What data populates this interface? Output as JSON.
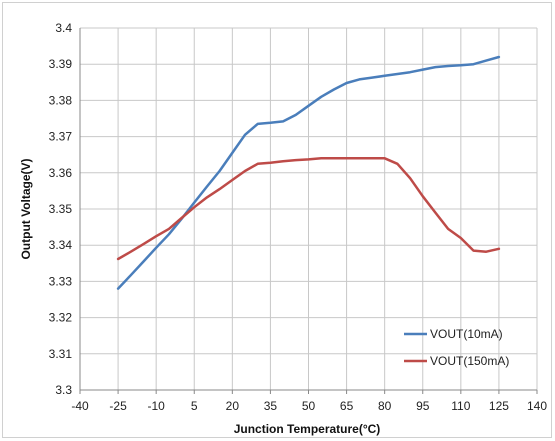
{
  "chart_data": {
    "type": "line",
    "title": "",
    "xlabel": "Junction Temperature(°C)",
    "ylabel": "Output Voltage(V)",
    "xlim": [
      -40,
      140
    ],
    "ylim": [
      3.3,
      3.4
    ],
    "x_ticks": [
      "-40",
      "-25",
      "-10",
      "5",
      "20",
      "35",
      "50",
      "65",
      "80",
      "95",
      "110",
      "125",
      "140"
    ],
    "y_ticks": [
      "3.3",
      "3.31",
      "3.32",
      "3.33",
      "3.34",
      "3.35",
      "3.36",
      "3.37",
      "3.38",
      "3.39",
      "3.4"
    ],
    "grid": true,
    "legend_position": "bottom-right",
    "series": [
      {
        "name": "VOUT(10mA)",
        "color": "#4a7ebb",
        "x": [
          -25,
          -20,
          -15,
          -10,
          -5,
          0,
          5,
          10,
          15,
          20,
          25,
          30,
          35,
          40,
          45,
          50,
          55,
          60,
          65,
          70,
          75,
          80,
          85,
          90,
          95,
          100,
          105,
          110,
          115,
          120,
          125
        ],
        "y": [
          3.328,
          3.3317,
          3.3355,
          3.3393,
          3.343,
          3.3473,
          3.3518,
          3.3562,
          3.3605,
          3.3655,
          3.3705,
          3.3735,
          3.3738,
          3.3742,
          3.376,
          3.3785,
          3.381,
          3.383,
          3.3848,
          3.3858,
          3.3863,
          3.3868,
          3.3873,
          3.3878,
          3.3885,
          3.3892,
          3.3895,
          3.3897,
          3.39,
          3.391,
          3.392
        ]
      },
      {
        "name": "VOUT(150mA)",
        "color": "#be4b48",
        "x": [
          -25,
          -20,
          -15,
          -10,
          -5,
          0,
          5,
          10,
          15,
          20,
          25,
          30,
          35,
          40,
          45,
          50,
          55,
          60,
          65,
          70,
          75,
          80,
          85,
          90,
          95,
          100,
          105,
          110,
          115,
          120,
          125
        ],
        "y": [
          3.3362,
          3.3382,
          3.3403,
          3.3425,
          3.3445,
          3.3475,
          3.3505,
          3.3532,
          3.3555,
          3.358,
          3.3605,
          3.3625,
          3.3628,
          3.3632,
          3.3635,
          3.3637,
          3.364,
          3.364,
          3.364,
          3.364,
          3.364,
          3.364,
          3.3625,
          3.3585,
          3.3535,
          3.349,
          3.3445,
          3.342,
          3.3385,
          3.3382,
          3.339
        ]
      }
    ]
  }
}
